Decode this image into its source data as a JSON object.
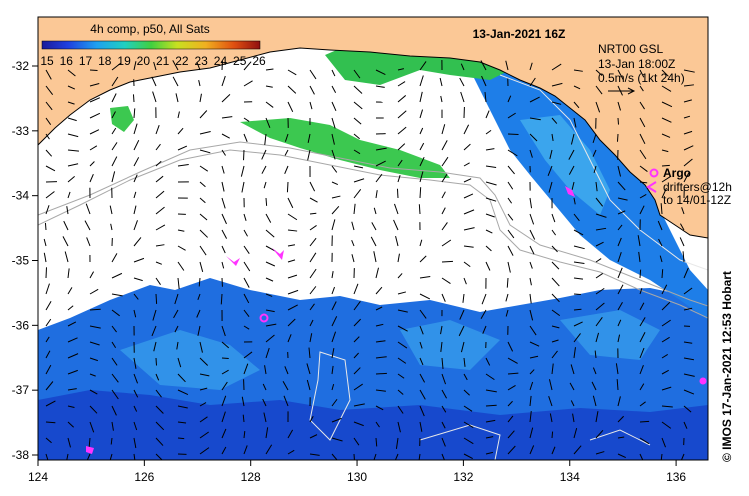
{
  "title": "13-Jan-2021 16Z",
  "colorbar": {
    "title": "4h comp, p50, All Sats",
    "ticks": [
      "15",
      "16",
      "17",
      "18",
      "19",
      "20",
      "21",
      "22",
      "23",
      "24",
      "25",
      "26"
    ],
    "min": 15,
    "max": 26
  },
  "current_info": {
    "line1": "NRT00 GSL",
    "line2": "13-Jan 18:00Z",
    "line3": "0.5m/s (1kt 24h)"
  },
  "legend": {
    "argo_label": "Argo",
    "drifters_line1": "drifters@12h",
    "drifters_line2": "to 14/01-12Z"
  },
  "axes": {
    "x_ticks": [
      "124",
      "126",
      "128",
      "130",
      "132",
      "134",
      "136"
    ],
    "y_ticks": [
      "-32",
      "-33",
      "-34",
      "-35",
      "-36",
      "-37",
      "-38"
    ]
  },
  "credit": "© IMOS 17-Jan-2021 12:53 Hobart",
  "colors": {
    "land": "#fbc896",
    "cloud": "#ffffff",
    "sst_cool": "#1560d8",
    "sst_warm": "#35c84a",
    "argo": "#ff33ff",
    "bathymetry": "#a8a8a8"
  }
}
